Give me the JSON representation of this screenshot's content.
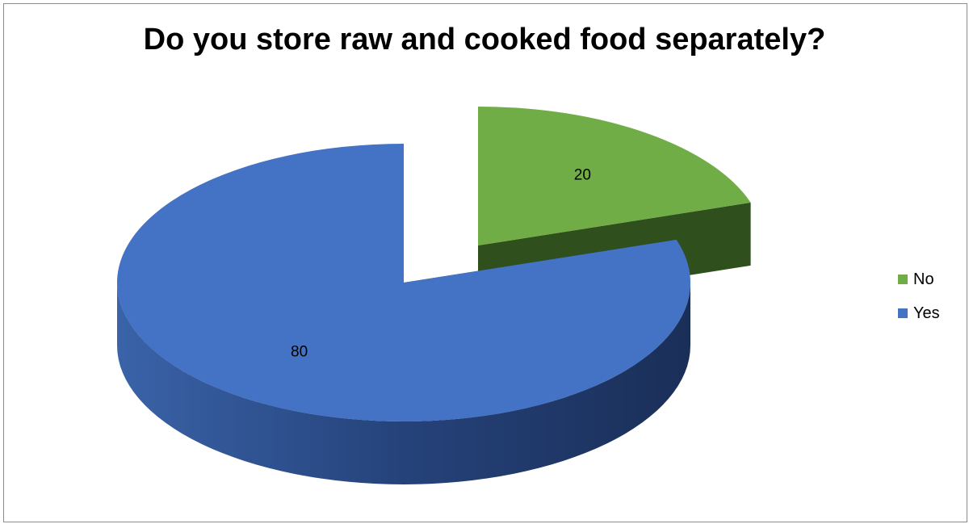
{
  "chart_data": {
    "type": "pie",
    "title": "Do you store raw and cooked food separately?",
    "style": "3d-exploded",
    "categories": [
      "No",
      "Yes"
    ],
    "values": [
      20,
      80
    ],
    "data_labels": [
      "20",
      "80"
    ],
    "colors": [
      "#70AD47",
      "#4472C4"
    ],
    "legend_position": "right",
    "grid": false
  }
}
